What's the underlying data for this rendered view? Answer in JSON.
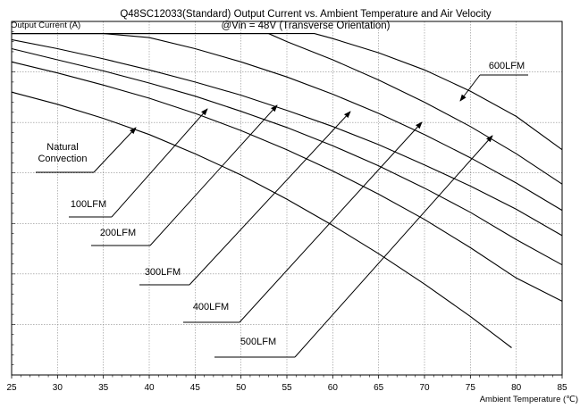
{
  "chart_data": {
    "type": "line",
    "title": "Q48SC12033(Standard)  Output Current vs. Ambient Temperature and Air Velocity",
    "subtitle": "@Vin = 48V (Transverse Orientation)",
    "ylabel": "Output Current (A)",
    "xlabel": "Ambient Temperature (℃)",
    "xlim": [
      25,
      85
    ],
    "ylim": [
      0,
      35
    ],
    "x_ticks": [
      "25",
      "30",
      "35",
      "40",
      "45",
      "50",
      "55",
      "60",
      "65",
      "70",
      "75",
      "80",
      "85"
    ],
    "grid": true,
    "series": [
      {
        "name": "Natural Convection",
        "label_lines": [
          "Natural",
          "Convection"
        ],
        "points": [
          [
            25,
            28
          ],
          [
            30,
            26.8
          ],
          [
            35,
            25.4
          ],
          [
            40,
            23.8
          ],
          [
            45,
            21.9
          ],
          [
            50,
            19.8
          ],
          [
            55,
            17.4
          ],
          [
            60,
            14.8
          ],
          [
            65,
            12
          ],
          [
            70,
            9
          ],
          [
            75,
            5.8
          ],
          [
            79.5,
            2.7
          ]
        ]
      },
      {
        "name": "100LFM",
        "label_lines": [
          "100LFM"
        ],
        "points": [
          [
            25,
            31
          ],
          [
            30,
            29.9
          ],
          [
            35,
            28.7
          ],
          [
            40,
            27.4
          ],
          [
            45,
            25.9
          ],
          [
            50,
            24.2
          ],
          [
            55,
            22.3
          ],
          [
            60,
            20.2
          ],
          [
            65,
            17.9
          ],
          [
            70,
            15.4
          ],
          [
            75,
            12.6
          ],
          [
            80,
            9.6
          ],
          [
            85,
            7.3
          ]
        ]
      },
      {
        "name": "200LFM",
        "label_lines": [
          "200LFM"
        ],
        "points": [
          [
            25,
            32.3
          ],
          [
            30,
            31.2
          ],
          [
            35,
            30.1
          ],
          [
            40,
            28.9
          ],
          [
            45,
            27.6
          ],
          [
            50,
            26.1
          ],
          [
            55,
            24.5
          ],
          [
            60,
            22.7
          ],
          [
            65,
            20.7
          ],
          [
            70,
            18.5
          ],
          [
            75,
            16.1
          ],
          [
            80,
            13.4
          ],
          [
            85,
            10.9
          ]
        ]
      },
      {
        "name": "300LFM",
        "label_lines": [
          "300LFM"
        ],
        "points": [
          [
            25,
            33.2
          ],
          [
            30,
            32.3
          ],
          [
            35,
            31.3
          ],
          [
            40,
            30.2
          ],
          [
            45,
            29
          ],
          [
            50,
            27.7
          ],
          [
            55,
            26.2
          ],
          [
            60,
            24.6
          ],
          [
            65,
            22.8
          ],
          [
            70,
            20.8
          ],
          [
            75,
            18.7
          ],
          [
            80,
            16.4
          ],
          [
            85,
            13.8
          ]
        ]
      },
      {
        "name": "400LFM",
        "label_lines": [
          "400LFM"
        ],
        "points": [
          [
            25,
            33.8
          ],
          [
            30,
            33.8
          ],
          [
            35,
            33.8
          ],
          [
            40,
            33.4
          ],
          [
            45,
            32.3
          ],
          [
            50,
            31
          ],
          [
            55,
            29.5
          ],
          [
            60,
            27.8
          ],
          [
            65,
            25.9
          ],
          [
            70,
            23.8
          ],
          [
            75,
            21.5
          ],
          [
            80,
            19
          ],
          [
            85,
            16.3
          ]
        ]
      },
      {
        "name": "500LFM",
        "label_lines": [
          "500LFM"
        ],
        "points": [
          [
            25,
            33.8
          ],
          [
            30,
            33.8
          ],
          [
            35,
            33.8
          ],
          [
            40,
            33.8
          ],
          [
            45,
            33.8
          ],
          [
            50,
            33.8
          ],
          [
            53,
            33.8
          ],
          [
            55,
            33
          ],
          [
            60,
            31.2
          ],
          [
            65,
            29.2
          ],
          [
            70,
            27
          ],
          [
            75,
            24.6
          ],
          [
            80,
            21.9
          ],
          [
            85,
            18.9
          ]
        ]
      },
      {
        "name": "600LFM",
        "label_lines": [
          "600LFM"
        ],
        "points": [
          [
            25,
            33.8
          ],
          [
            30,
            33.8
          ],
          [
            35,
            33.8
          ],
          [
            40,
            33.8
          ],
          [
            45,
            33.8
          ],
          [
            50,
            33.8
          ],
          [
            55,
            33.8
          ],
          [
            58,
            33.8
          ],
          [
            60,
            33.3
          ],
          [
            65,
            31.9
          ],
          [
            70,
            30.2
          ],
          [
            75,
            28.1
          ],
          [
            80,
            25.6
          ],
          [
            85,
            22.3
          ]
        ]
      }
    ]
  }
}
